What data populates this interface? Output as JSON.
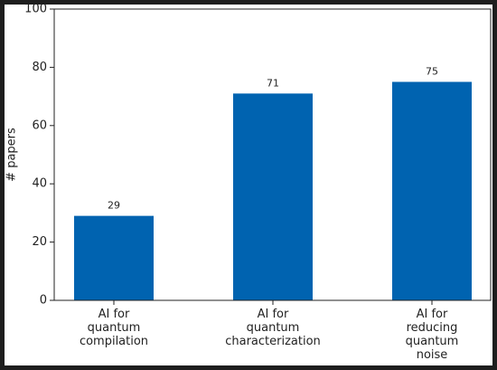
{
  "chart_data": {
    "type": "bar",
    "y_label": "# papers",
    "categories": [
      "AI for\nquantum\ncompilation",
      "AI for\nquantum\ncharacterization",
      "AI for\nreducing\nquantum\nnoise"
    ],
    "values": [
      29,
      71,
      75
    ],
    "color": "#0063b0",
    "ylim": [
      0,
      100
    ],
    "yticks": [
      0,
      20,
      40,
      60,
      80,
      100
    ]
  }
}
